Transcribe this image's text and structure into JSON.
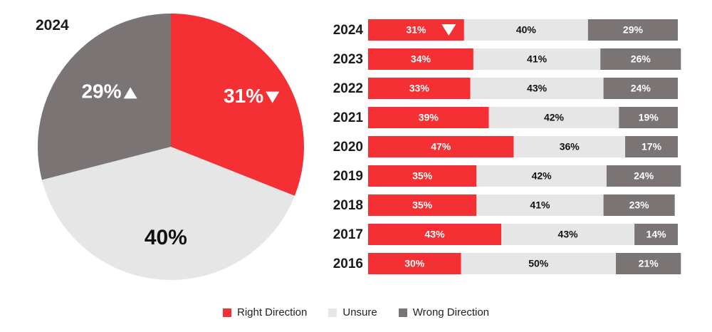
{
  "colors": {
    "right": "#f53034",
    "unsure": "#e6e6e6",
    "wrong": "#7a7474"
  },
  "chart_data": [
    {
      "type": "pie",
      "title": "2024",
      "slices": [
        {
          "name": "Right Direction",
          "value": 31,
          "label": "31%",
          "trend": "down"
        },
        {
          "name": "Unsure",
          "value": 40,
          "label": "40%"
        },
        {
          "name": "Wrong Direction",
          "value": 29,
          "label": "29%",
          "trend": "up"
        }
      ]
    },
    {
      "type": "bar",
      "orientation": "horizontal",
      "stacked": true,
      "categories": [
        "2024",
        "2023",
        "2022",
        "2021",
        "2020",
        "2019",
        "2018",
        "2017",
        "2016"
      ],
      "series": [
        {
          "name": "Right Direction",
          "values": [
            31,
            34,
            33,
            39,
            47,
            35,
            35,
            43,
            30
          ]
        },
        {
          "name": "Unsure",
          "values": [
            40,
            41,
            43,
            42,
            36,
            42,
            41,
            43,
            50
          ]
        },
        {
          "name": "Wrong Direction",
          "values": [
            29,
            26,
            24,
            19,
            17,
            24,
            23,
            14,
            21
          ]
        }
      ],
      "annotations": [
        {
          "category": "2024",
          "series": "Right Direction",
          "marker": "down-triangle"
        }
      ],
      "legend": "bottom-center"
    }
  ],
  "legend": {
    "items": [
      {
        "label": "Right Direction",
        "color": "#f53034"
      },
      {
        "label": "Unsure",
        "color": "#e6e6e6"
      },
      {
        "label": "Wrong Direction",
        "color": "#7a7474"
      }
    ]
  }
}
